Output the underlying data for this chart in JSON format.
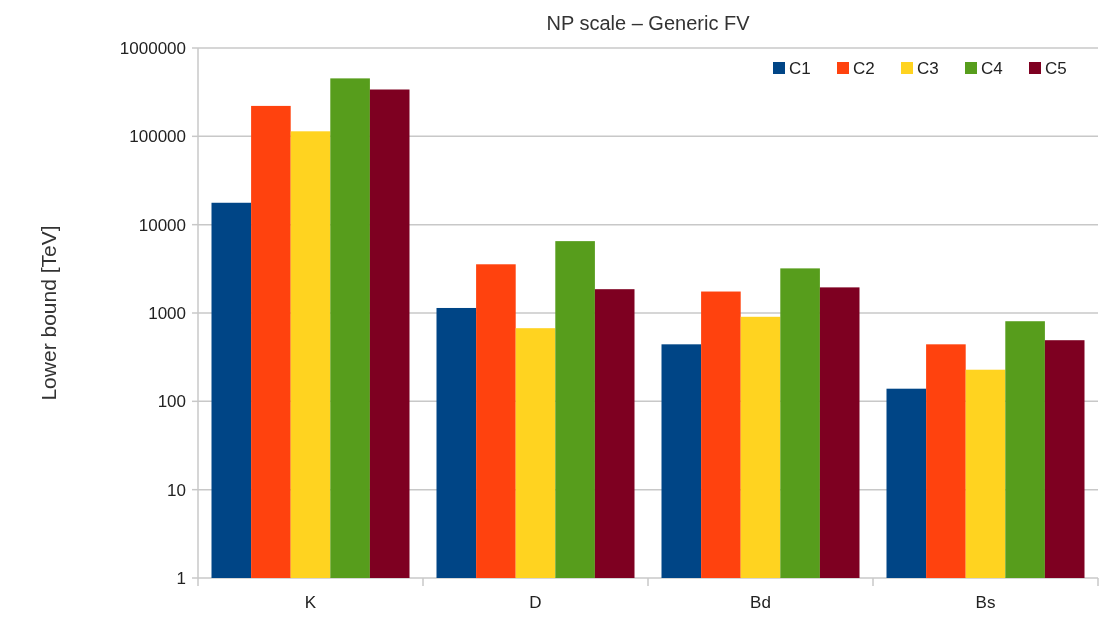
{
  "chart_data": {
    "type": "bar",
    "title": "NP scale – Generic FV",
    "ylabel": "Lower bound [TeV]",
    "categories": [
      "K",
      "D",
      "Bd",
      "Bs"
    ],
    "series": [
      {
        "name": "C1",
        "color": "#004586",
        "values": [
          17700,
          1140,
          442,
          139
        ]
      },
      {
        "name": "C2",
        "color": "#ff420e",
        "values": [
          221000,
          3560,
          1750,
          442
        ]
      },
      {
        "name": "C3",
        "color": "#ffd320",
        "values": [
          114000,
          673,
          906,
          228
        ]
      },
      {
        "name": "C4",
        "color": "#579d1c",
        "values": [
          453000,
          6510,
          3200,
          807
        ]
      },
      {
        "name": "C5",
        "color": "#7e0021",
        "values": [
          339000,
          1860,
          1950,
          492
        ]
      }
    ],
    "log": true,
    "ylim": [
      1,
      1000000
    ],
    "yticks": [
      1,
      10,
      100,
      1000,
      10000,
      100000,
      1000000
    ],
    "grid": "y",
    "legend": "top right"
  }
}
